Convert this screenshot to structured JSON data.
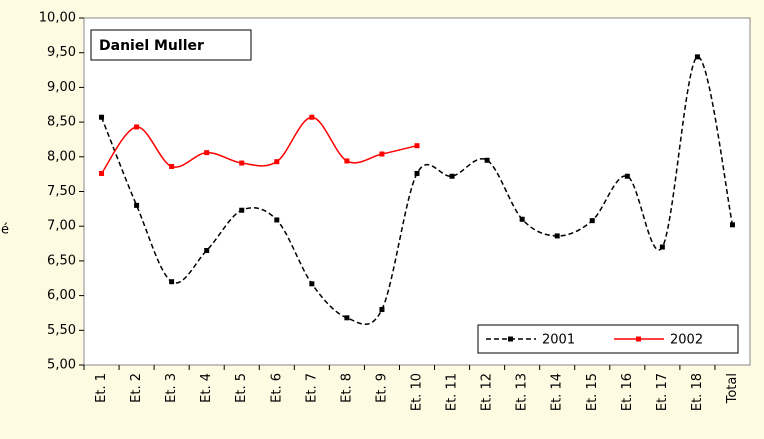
{
  "chart_data": {
    "type": "line",
    "title": "Daniel Muller",
    "y_label": "é",
    "categories": [
      "Et. 1",
      "Et. 2",
      "Et. 3",
      "Et. 4",
      "Et. 5",
      "Et. 6",
      "Et. 7",
      "Et. 8",
      "Et. 9",
      "Et. 10",
      "Et. 11",
      "Et. 12",
      "Et. 13",
      "Et. 14",
      "Et. 15",
      "Et. 16",
      "Et. 17",
      "Et. 18",
      "Total"
    ],
    "series": [
      {
        "name": "2001",
        "color": "#000000",
        "dashed": true,
        "values": [
          8.57,
          7.3,
          6.2,
          6.65,
          7.23,
          7.09,
          6.17,
          5.68,
          5.8,
          7.76,
          7.72,
          7.95,
          7.1,
          6.86,
          7.08,
          7.72,
          6.7,
          9.44,
          7.02
        ]
      },
      {
        "name": "2002",
        "color": "#ff0000",
        "dashed": false,
        "values": [
          7.76,
          8.43,
          7.86,
          8.06,
          7.91,
          7.93,
          8.57,
          7.94,
          8.04,
          8.16,
          null,
          null,
          null,
          null,
          null,
          null,
          null,
          null,
          null
        ]
      }
    ],
    "ylim": [
      5,
      10
    ],
    "yticks": [
      {
        "value": 5,
        "label": "5,00"
      },
      {
        "value": 5.5,
        "label": "5,50"
      },
      {
        "value": 6,
        "label": "6,00"
      },
      {
        "value": 6.5,
        "label": "6,50"
      },
      {
        "value": 7,
        "label": "7,00"
      },
      {
        "value": 7.5,
        "label": "7,50"
      },
      {
        "value": 8,
        "label": "8,00"
      },
      {
        "value": 8.5,
        "label": "8,50"
      },
      {
        "value": 9,
        "label": "9,00"
      },
      {
        "value": 9.5,
        "label": "9,50"
      },
      {
        "value": 10,
        "label": "10,00"
      }
    ],
    "grid": false,
    "legend": "bottom-right",
    "smooth": true
  }
}
